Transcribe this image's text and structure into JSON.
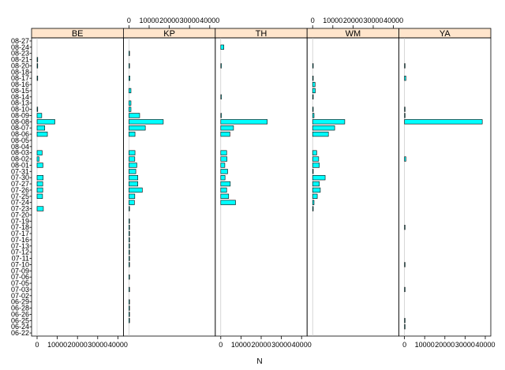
{
  "chart_data": {
    "type": "bar",
    "orientation": "horizontal",
    "xlabel": "N",
    "xlim": [
      0,
      40000
    ],
    "xticks": [
      0,
      10000,
      20000,
      30000,
      40000
    ],
    "colors": {
      "bar_fill": "#00ffff",
      "bar_stroke": "#000000",
      "strip_fill": "#ffe5cc"
    },
    "categories": [
      "08-27",
      "08-24",
      "08-23",
      "08-21",
      "08-20",
      "08-18",
      "08-17",
      "08-16",
      "08-15",
      "08-14",
      "08-13",
      "08-10",
      "08-09",
      "08-08",
      "08-07",
      "08-06",
      "08-05",
      "08-04",
      "08-03",
      "08-02",
      "08-01",
      "07-31",
      "07-30",
      "07-27",
      "07-26",
      "07-25",
      "07-24",
      "07-23",
      "07-20",
      "07-19",
      "07-18",
      "07-17",
      "07-16",
      "07-13",
      "07-12",
      "07-11",
      "07-10",
      "07-09",
      "07-06",
      "07-05",
      "07-03",
      "07-02",
      "06-29",
      "06-28",
      "06-26",
      "06-25",
      "06-24",
      "06-22"
    ],
    "panels": [
      {
        "name": "BE",
        "values": [
          0,
          0,
          0,
          300,
          300,
          0,
          200,
          0,
          0,
          0,
          0,
          300,
          2300,
          8800,
          3800,
          5100,
          0,
          0,
          2500,
          1000,
          2900,
          0,
          3000,
          2800,
          2800,
          2700,
          0,
          3100,
          0,
          0,
          0,
          0,
          0,
          0,
          0,
          0,
          0,
          0,
          0,
          0,
          0,
          0,
          0,
          0,
          0,
          0,
          0,
          0
        ]
      },
      {
        "name": "KP",
        "values": [
          0,
          0,
          300,
          0,
          300,
          0,
          500,
          0,
          1000,
          0,
          1000,
          1000,
          5300,
          17000,
          8100,
          3000,
          0,
          0,
          3000,
          2900,
          3900,
          3400,
          4400,
          4400,
          6600,
          2900,
          2700,
          300,
          0,
          300,
          200,
          200,
          300,
          300,
          300,
          300,
          300,
          0,
          300,
          0,
          300,
          0,
          300,
          300,
          300,
          300,
          0,
          0
        ]
      },
      {
        "name": "TH",
        "values": [
          0,
          1500,
          0,
          0,
          300,
          0,
          0,
          0,
          0,
          300,
          0,
          0,
          300,
          23000,
          6300,
          4500,
          0,
          0,
          2900,
          3100,
          2000,
          3400,
          2100,
          4700,
          2900,
          3900,
          7300,
          0,
          0,
          0,
          0,
          0,
          0,
          0,
          0,
          0,
          0,
          0,
          0,
          0,
          0,
          0,
          0,
          0,
          0,
          0,
          0,
          0
        ]
      },
      {
        "name": "WM",
        "values": [
          0,
          0,
          0,
          0,
          300,
          0,
          300,
          1200,
          1300,
          200,
          0,
          300,
          700,
          15900,
          10900,
          7800,
          0,
          0,
          2000,
          3000,
          3300,
          300,
          6200,
          3300,
          3800,
          2300,
          700,
          300,
          0,
          0,
          0,
          0,
          0,
          0,
          0,
          0,
          0,
          0,
          0,
          0,
          0,
          0,
          0,
          0,
          0,
          0,
          0,
          0
        ]
      },
      {
        "name": "YA",
        "values": [
          0,
          0,
          0,
          0,
          300,
          0,
          700,
          0,
          0,
          0,
          0,
          300,
          300,
          38500,
          0,
          0,
          0,
          0,
          0,
          700,
          0,
          0,
          0,
          0,
          0,
          0,
          0,
          0,
          0,
          0,
          300,
          0,
          0,
          0,
          0,
          0,
          300,
          0,
          0,
          0,
          300,
          0,
          0,
          0,
          0,
          300,
          300,
          0
        ]
      }
    ]
  }
}
